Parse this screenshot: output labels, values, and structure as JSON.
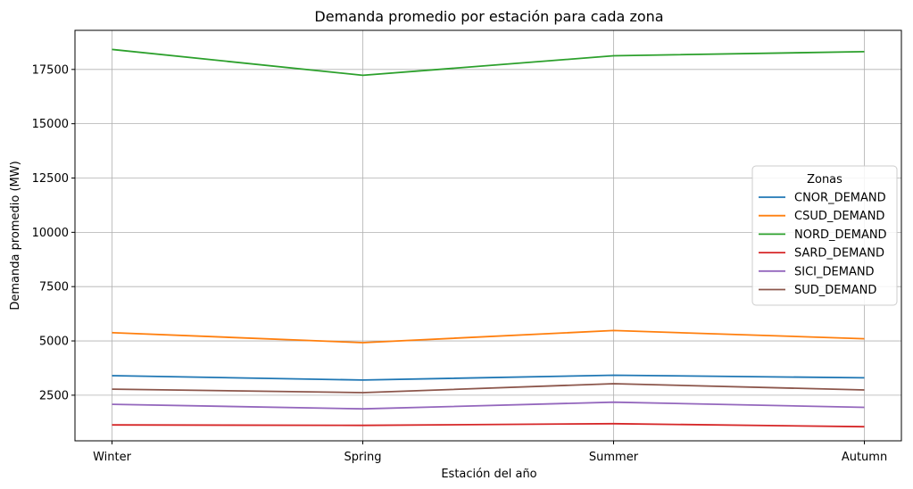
{
  "chart_data": {
    "type": "line",
    "title": "Demanda promedio por estación para cada zona",
    "xlabel": "Estación del año",
    "ylabel": "Demanda promedio (MW)",
    "categories": [
      "Winter",
      "Spring",
      "Summer",
      "Autumn"
    ],
    "ylim": [
      400,
      19300
    ],
    "yticks": [
      2500,
      5000,
      7500,
      10000,
      12500,
      15000,
      17500
    ],
    "ytick_labels": [
      "2500",
      "5000",
      "7500",
      "10000",
      "12500",
      "15000",
      "17500"
    ],
    "grid": true,
    "legend": {
      "title": "Zonas",
      "placement": "center-right"
    },
    "series": [
      {
        "name": "CNOR_DEMAND",
        "color": "#1f77b4",
        "values": [
          3400,
          3200,
          3420,
          3300
        ]
      },
      {
        "name": "CSUD_DEMAND",
        "color": "#ff7f0e",
        "values": [
          5380,
          4920,
          5480,
          5100
        ]
      },
      {
        "name": "NORD_DEMAND",
        "color": "#2ca02c",
        "values": [
          18420,
          17230,
          18130,
          18320
        ]
      },
      {
        "name": "SARD_DEMAND",
        "color": "#d62728",
        "values": [
          1130,
          1110,
          1190,
          1050
        ]
      },
      {
        "name": "SICI_DEMAND",
        "color": "#9467bd",
        "values": [
          2080,
          1870,
          2180,
          1940
        ]
      },
      {
        "name": "SUD_DEMAND",
        "color": "#8c564b",
        "values": [
          2780,
          2620,
          3030,
          2740
        ]
      }
    ]
  }
}
